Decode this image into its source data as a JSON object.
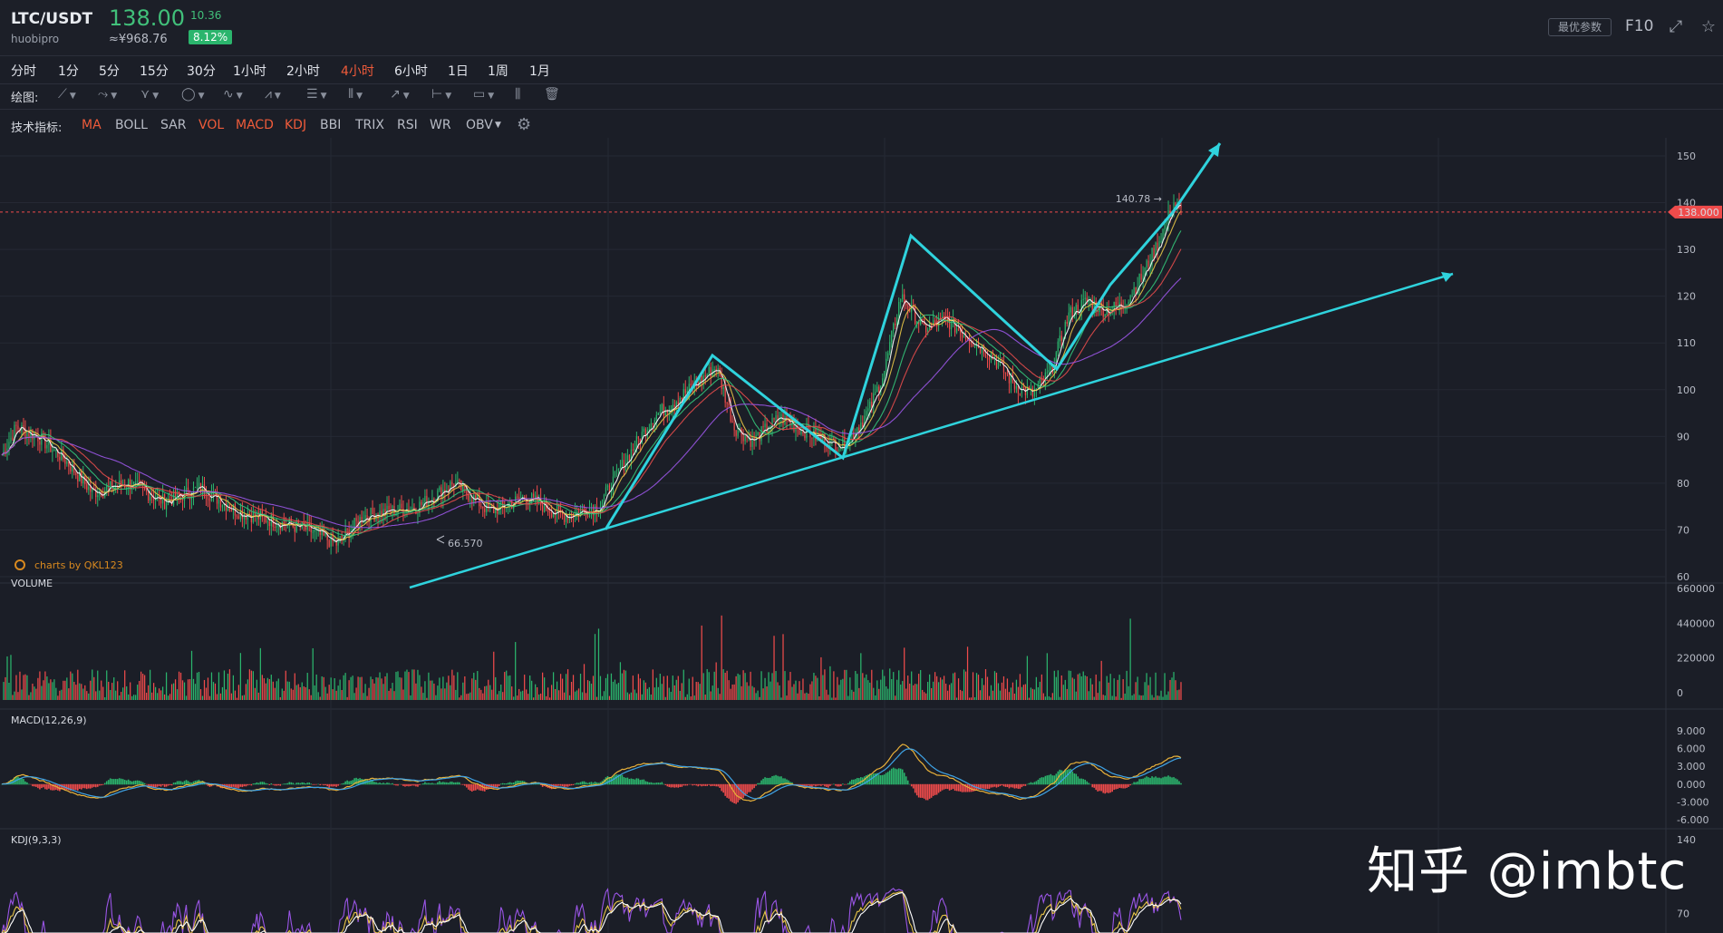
{
  "header": {
    "pair": "LTC/USDT",
    "exchange": "huobipro",
    "price": "138.00",
    "price_cny": "≈¥968.76",
    "change": "10.36",
    "change_pct": "8.12%",
    "optimal_params_label": "最优参数",
    "f10_label": "F10"
  },
  "timeframes": [
    {
      "label": "分时"
    },
    {
      "label": "1分"
    },
    {
      "label": "5分"
    },
    {
      "label": "15分"
    },
    {
      "label": "30分"
    },
    {
      "label": "1小时"
    },
    {
      "label": "2小时"
    },
    {
      "label": "4小时",
      "active": true
    },
    {
      "label": "6小时"
    },
    {
      "label": "1日"
    },
    {
      "label": "1周"
    },
    {
      "label": "1月"
    }
  ],
  "drawing": {
    "label": "绘图:",
    "tools": [
      "trend-line",
      "ray",
      "fork",
      "ellipse",
      "wave",
      "pattern",
      "fib",
      "vertical-lines",
      "arrow",
      "range",
      "comment",
      "bars",
      "trash"
    ]
  },
  "indicators": {
    "label": "技术指标:",
    "items": [
      {
        "label": "MA",
        "on": true
      },
      {
        "label": "BOLL"
      },
      {
        "label": "SAR"
      },
      {
        "label": "VOL",
        "on": true
      },
      {
        "label": "MACD",
        "on": true
      },
      {
        "label": "KDJ",
        "on": true
      },
      {
        "label": "BBI"
      },
      {
        "label": "TRIX"
      },
      {
        "label": "RSI"
      },
      {
        "label": "WR"
      },
      {
        "label": "OBV"
      }
    ]
  },
  "colors": {
    "up": "#2bb56d",
    "down": "#ef4b4b",
    "annotation": "#2fd3dd",
    "ma5": "#ffffff",
    "ma10": "#e8c547",
    "ma20": "#34c47a",
    "ma30": "#e34b4b",
    "ma60": "#9a55e6",
    "dif": "#e8b13a",
    "dea": "#3fa3e6",
    "k": "#e8c547",
    "d": "#ffffff",
    "j": "#9a55e6"
  },
  "chart_data": [
    {
      "type": "candlestick",
      "timeframe": "4小时",
      "ylim": [
        60,
        150
      ],
      "yticks": [
        60,
        70,
        80,
        90,
        100,
        110,
        120,
        130,
        140,
        150
      ],
      "current_price": "138.000",
      "high_label": "140.78",
      "low_label": "66.570",
      "credit": "charts by QKL123",
      "anchors": [
        [
          0,
          86
        ],
        [
          8,
          92
        ],
        [
          20,
          90
        ],
        [
          35,
          85
        ],
        [
          50,
          78
        ],
        [
          70,
          80
        ],
        [
          90,
          76
        ],
        [
          110,
          79
        ],
        [
          130,
          74
        ],
        [
          150,
          72
        ],
        [
          170,
          70
        ],
        [
          185,
          67
        ],
        [
          200,
          73
        ],
        [
          230,
          75
        ],
        [
          250,
          80
        ],
        [
          270,
          74
        ],
        [
          290,
          77
        ],
        [
          310,
          73
        ],
        [
          330,
          75
        ],
        [
          345,
          85
        ],
        [
          360,
          94
        ],
        [
          380,
          100
        ],
        [
          395,
          105
        ],
        [
          405,
          92
        ],
        [
          415,
          89
        ],
        [
          430,
          94
        ],
        [
          450,
          90
        ],
        [
          465,
          88
        ],
        [
          475,
          93
        ],
        [
          480,
          96
        ],
        [
          488,
          104
        ],
        [
          497,
          120
        ],
        [
          510,
          113
        ],
        [
          522,
          115
        ],
        [
          535,
          111
        ],
        [
          548,
          107
        ],
        [
          560,
          101
        ],
        [
          570,
          99
        ],
        [
          580,
          104
        ],
        [
          590,
          116
        ],
        [
          600,
          119
        ],
        [
          610,
          117
        ],
        [
          620,
          118
        ],
        [
          630,
          124
        ],
        [
          640,
          132
        ],
        [
          648,
          140
        ],
        [
          652,
          138
        ]
      ]
    },
    {
      "type": "bar",
      "title": "VOLUME",
      "ylim": [
        0,
        660000
      ],
      "yticks": [
        "660000",
        "440000",
        "220000",
        "0"
      ]
    },
    {
      "type": "line",
      "title": "MACD(12,26,9)",
      "ylim": [
        -6,
        9
      ],
      "yticks": [
        "9.000",
        "6.000",
        "3.000",
        "0.000",
        "-3.000",
        "-6.000"
      ]
    },
    {
      "type": "line",
      "title": "KDJ(9,3,3)",
      "ylim": [
        0,
        140
      ],
      "yticks": [
        "140",
        "70"
      ]
    }
  ],
  "watermark": "知乎 @imbtc"
}
